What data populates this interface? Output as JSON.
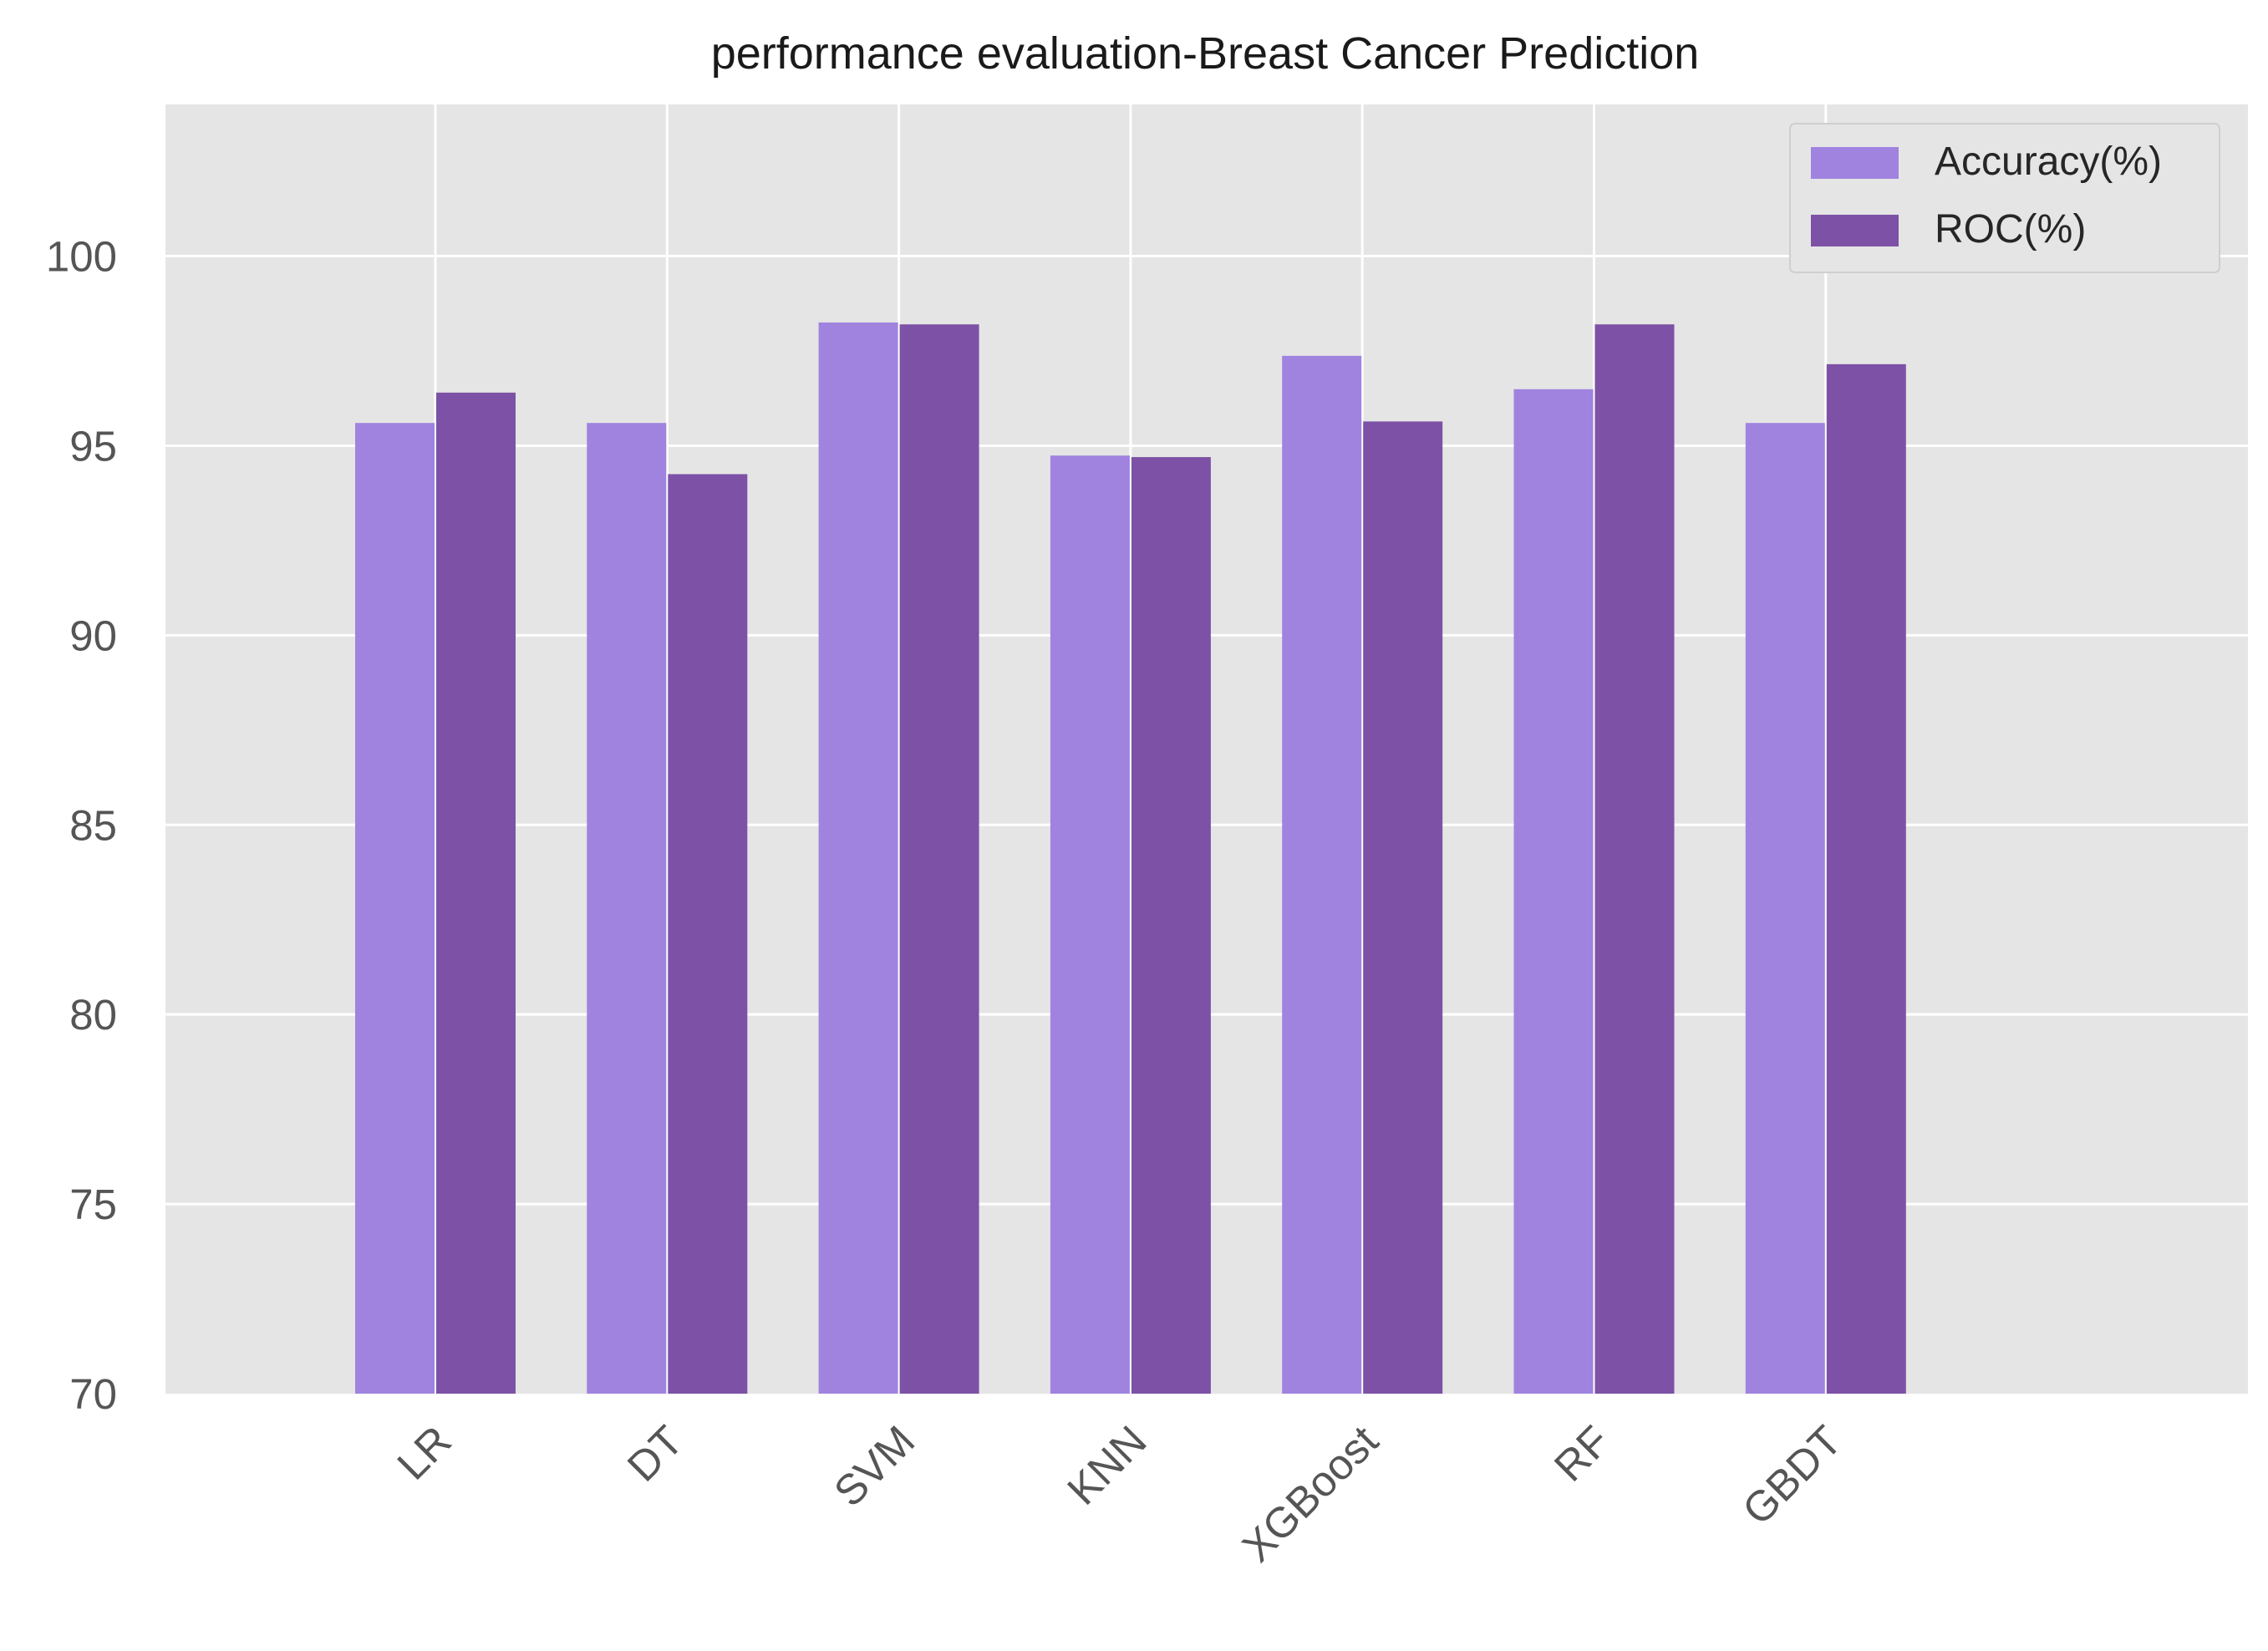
{
  "chart_data": {
    "type": "bar",
    "title": "performance evaluation-Breast Cancer Prediction",
    "xlabel": "",
    "ylabel": "",
    "categories": [
      "LR",
      "DT",
      "SVM",
      "KNN",
      "XGBoost",
      "RF",
      "GBDT"
    ],
    "series": [
      {
        "name": "Accuracy(%)",
        "color": "#9f83df",
        "values": [
          95.6,
          95.6,
          98.25,
          94.74,
          97.37,
          96.49,
          95.6
        ]
      },
      {
        "name": "ROC(%)",
        "color": "#7d52a6",
        "values": [
          96.4,
          94.25,
          98.2,
          94.7,
          95.64,
          98.2,
          97.15
        ]
      }
    ],
    "ylim": [
      70,
      104
    ],
    "yticks": [
      70,
      75,
      80,
      85,
      90,
      95,
      100
    ],
    "grid": true,
    "legend_position": "top-right",
    "background_color": "#e5e5e5"
  }
}
